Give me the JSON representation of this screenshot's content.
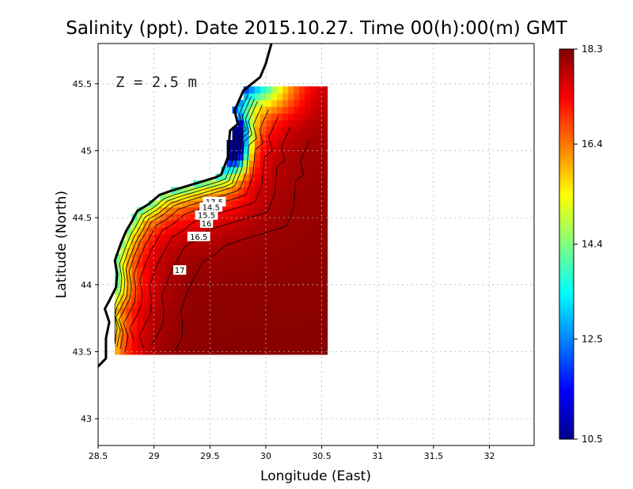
{
  "chart_data": {
    "type": "heatmap",
    "title": "Salinity (ppt). Date 2015.10.27. Time 00(h):00(m) GMT",
    "xlabel": "Longitude (East)",
    "ylabel": "Latitude (North)",
    "annotation": "Z = 2.5 m",
    "xlim": [
      28.5,
      32.4
    ],
    "ylim": [
      42.8,
      45.8
    ],
    "x_ticks": [
      "28.5",
      "29",
      "29.5",
      "30",
      "30.5",
      "31",
      "31.5",
      "32"
    ],
    "x_tick_values": [
      28.5,
      29,
      29.5,
      30,
      30.5,
      31,
      31.5,
      32
    ],
    "y_ticks": [
      "43",
      "43.5",
      "44",
      "44.5",
      "45",
      "45.5"
    ],
    "y_tick_values": [
      43,
      43.5,
      44,
      44.5,
      45,
      45.5
    ],
    "grid": true,
    "colorbar": {
      "range": [
        10.5,
        18.3
      ],
      "ticks": [
        "10.5",
        "12.5",
        "14.4",
        "16.4",
        "18.3"
      ],
      "tick_values": [
        10.5,
        12.5,
        14.4,
        16.4,
        18.3
      ],
      "colors": [
        "#00008f",
        "#0000ff",
        "#007fff",
        "#00ffff",
        "#7fff7f",
        "#ffff00",
        "#ff7f00",
        "#ff0000",
        "#7f0000"
      ]
    },
    "contour_labels": [
      {
        "text": "17.5",
        "lon": 29.54,
        "lat": 44.62
      },
      {
        "text": "14.5",
        "lon": 29.51,
        "lat": 44.58
      },
      {
        "text": "15.5",
        "lon": 29.47,
        "lat": 44.52
      },
      {
        "text": "16",
        "lon": 29.47,
        "lat": 44.46
      },
      {
        "text": "16.5",
        "lon": 29.4,
        "lat": 44.36
      },
      {
        "text": "17",
        "lon": 29.23,
        "lat": 44.11
      }
    ],
    "domain": {
      "lon_min": 28.65,
      "lon_max": 30.55,
      "lat_min": 43.48,
      "lat_max": 45.5
    }
  }
}
